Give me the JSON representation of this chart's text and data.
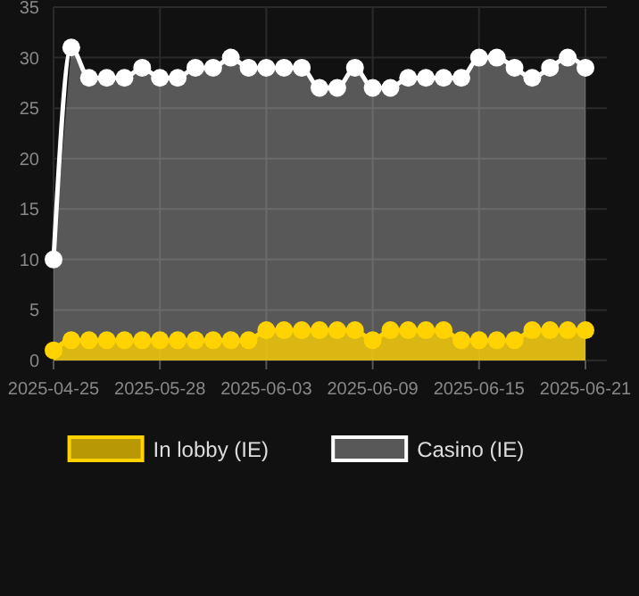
{
  "chart_data": {
    "type": "area",
    "categories": [
      "2025-04-25",
      null,
      null,
      null,
      null,
      null,
      "2025-05-28",
      null,
      null,
      null,
      null,
      null,
      "2025-06-03",
      null,
      null,
      null,
      null,
      null,
      "2025-06-09",
      null,
      null,
      null,
      null,
      null,
      "2025-06-15",
      null,
      null,
      null,
      null,
      null,
      "2025-06-21"
    ],
    "series": [
      {
        "name": "In lobby (IE)",
        "color": "#ffd200",
        "values": [
          1,
          2,
          2,
          2,
          2,
          2,
          2,
          2,
          2,
          2,
          2,
          2,
          3,
          3,
          3,
          3,
          3,
          3,
          2,
          3,
          3,
          3,
          3,
          2,
          2,
          2,
          2,
          3,
          3,
          3,
          3
        ]
      },
      {
        "name": "Casino (IE)",
        "color": "#ffffff",
        "values": [
          10,
          31,
          28,
          28,
          28,
          29,
          28,
          28,
          29,
          29,
          30,
          29,
          29,
          29,
          29,
          27,
          27,
          29,
          27,
          27,
          28,
          28,
          28,
          28,
          30,
          30,
          29,
          28,
          29,
          30,
          29
        ]
      }
    ],
    "ylim": [
      0,
      35
    ],
    "yticks": [
      0,
      5,
      10,
      15,
      20,
      25,
      30,
      35
    ],
    "grid": true,
    "legend": "bottom",
    "marker": "circle",
    "line_style": "solid"
  }
}
